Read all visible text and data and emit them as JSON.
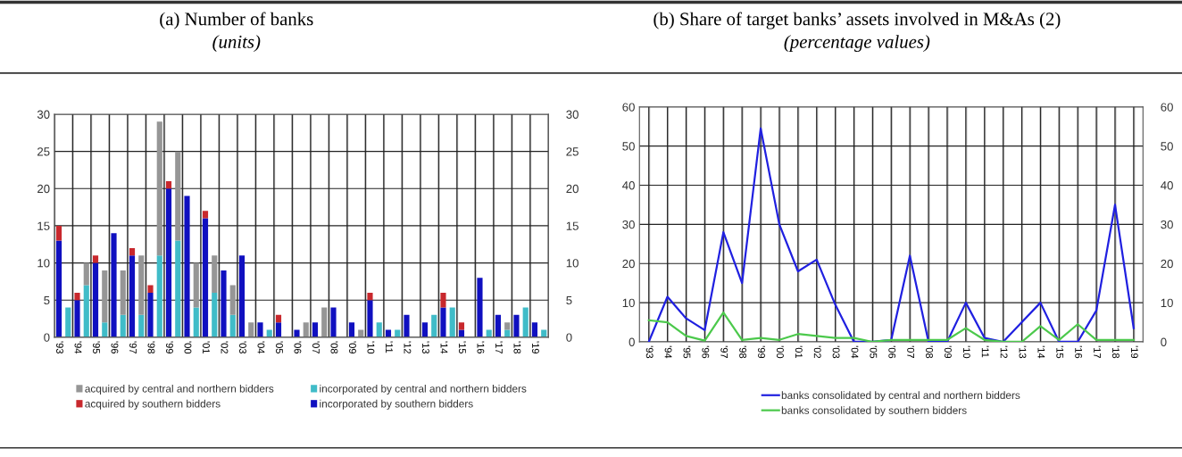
{
  "chart_data": [
    {
      "type": "bar",
      "title": "(a) Number of banks",
      "subtitle": "(units)",
      "stacked": true,
      "categories": [
        "'93",
        null,
        "'94",
        null,
        "'95",
        null,
        "'96",
        null,
        "'97",
        null,
        "'98",
        null,
        "'99",
        null,
        "'00",
        null,
        "'01",
        null,
        "'02",
        null,
        "'03",
        null,
        "'04",
        null,
        "'05",
        null,
        "'06",
        null,
        "'07",
        null,
        "'08",
        null,
        "'09",
        null,
        "'10",
        null,
        "'11",
        null,
        "'12",
        null,
        "'13",
        null,
        "'14",
        null,
        "'15",
        null,
        "'16",
        null,
        "'17",
        null,
        "'18",
        null,
        "'19",
        null
      ],
      "series": [
        {
          "name": "incorporated by southern bidders",
          "color": "#1010c0",
          "values": [
            13,
            null,
            5,
            null,
            10,
            null,
            14,
            null,
            11,
            null,
            6,
            null,
            20,
            null,
            19,
            null,
            16,
            null,
            9,
            null,
            11,
            null,
            2,
            null,
            2,
            null,
            1,
            null,
            2,
            null,
            4,
            null,
            2,
            null,
            5,
            null,
            1,
            null,
            3,
            null,
            2,
            null,
            4,
            null,
            1,
            null,
            8,
            null,
            3,
            null,
            3,
            null,
            2,
            null
          ]
        },
        {
          "name": "acquired by southern bidders",
          "color": "#c8282d",
          "values": [
            2,
            null,
            1,
            null,
            1,
            null,
            null,
            null,
            1,
            null,
            1,
            null,
            1,
            null,
            null,
            null,
            1,
            null,
            null,
            null,
            null,
            null,
            null,
            null,
            1,
            null,
            null,
            null,
            null,
            null,
            null,
            null,
            null,
            null,
            1,
            null,
            null,
            null,
            null,
            null,
            null,
            null,
            2,
            null,
            1,
            null,
            null,
            null,
            null,
            null,
            null,
            null,
            null,
            null
          ]
        },
        {
          "name": "incorporated by central and northern bidders",
          "color": "#40bcc8",
          "values": [
            null,
            4,
            null,
            7,
            null,
            2,
            null,
            3,
            null,
            3,
            null,
            11,
            null,
            13,
            null,
            4,
            null,
            6,
            null,
            3,
            null,
            null,
            null,
            1,
            null,
            null,
            null,
            null,
            null,
            null,
            null,
            null,
            null,
            null,
            null,
            2,
            null,
            1,
            null,
            null,
            null,
            3,
            null,
            4,
            null,
            null,
            null,
            1,
            null,
            1,
            null,
            4,
            null,
            1
          ]
        },
        {
          "name": "acquired by central and northern bidders",
          "color": "#969696",
          "values": [
            null,
            null,
            null,
            3,
            null,
            7,
            null,
            6,
            null,
            8,
            null,
            18,
            null,
            12,
            null,
            6,
            null,
            5,
            null,
            4,
            null,
            2,
            null,
            null,
            null,
            null,
            null,
            2,
            null,
            4,
            null,
            null,
            null,
            1,
            null,
            null,
            null,
            null,
            null,
            null,
            null,
            null,
            null,
            null,
            null,
            null,
            null,
            null,
            null,
            1,
            null,
            null,
            null,
            null
          ]
        }
      ],
      "ylim": [
        0,
        30
      ],
      "yticks": [
        0,
        5,
        10,
        15,
        20,
        25,
        30
      ],
      "y2lim": [
        0,
        30
      ],
      "y2ticks": [
        0,
        5,
        10,
        15,
        20,
        25,
        30
      ],
      "grid": true,
      "legend": "bottom"
    },
    {
      "type": "line",
      "title": "(b) Share of target banks’ assets involved in M&As (2)",
      "subtitle": "(percentage values)",
      "categories": [
        "'93",
        "'94",
        "'95",
        "'96",
        "'97",
        "'98",
        "'99",
        "'00",
        "'01",
        "'02",
        "'03",
        "'04",
        "'05",
        "'06",
        "'07",
        "'08",
        "'09",
        "'10",
        "'11",
        "'12",
        "'13",
        "'14",
        "'15",
        "'16",
        "'17",
        "'18",
        "'19"
      ],
      "series": [
        {
          "name": "banks consolidated by central and northern bidders",
          "color": "#2020e0",
          "values": [
            0,
            11.5,
            6,
            3,
            28,
            15,
            54.5,
            30,
            18,
            21,
            9.5,
            0,
            0,
            0.5,
            22,
            0,
            0,
            10,
            1,
            0,
            5,
            10,
            0,
            0,
            8,
            35,
            3.5
          ]
        },
        {
          "name": "banks consolidated by southern bidders",
          "color": "#4cc94c",
          "values": [
            5.5,
            5,
            1.5,
            0.3,
            7.5,
            0.5,
            1,
            0.5,
            2,
            1.5,
            1,
            1,
            0,
            0.5,
            0.5,
            0.5,
            0.5,
            3.5,
            0.5,
            0,
            0,
            4,
            0.5,
            4.5,
            0.5,
            0.5,
            0.5
          ]
        }
      ],
      "ylim": [
        0,
        60
      ],
      "yticks": [
        0,
        10,
        20,
        30,
        40,
        50,
        60
      ],
      "y2lim": [
        0,
        60
      ],
      "y2ticks": [
        0,
        10,
        20,
        30,
        40,
        50,
        60
      ],
      "grid": true,
      "legend": "bottom"
    }
  ]
}
